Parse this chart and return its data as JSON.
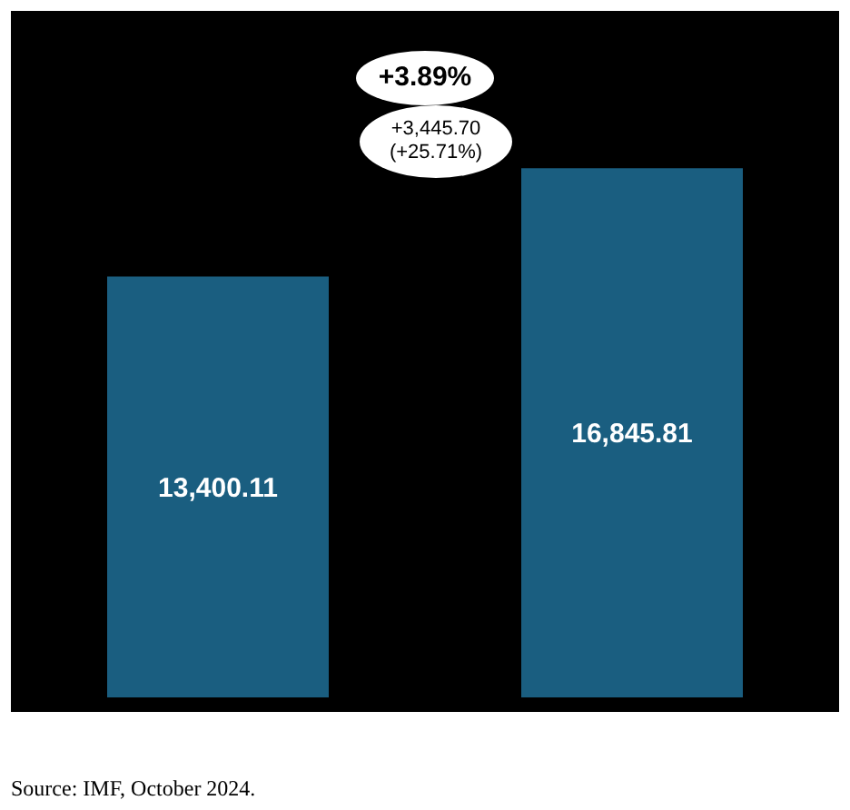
{
  "chart_data": {
    "type": "bar",
    "categories": [
      null,
      null
    ],
    "values": [
      13400.11,
      16845.81
    ],
    "color": "#1a5e80",
    "value_labels": [
      "13,400.11",
      "16,845.81"
    ],
    "grid": false,
    "legend": false,
    "annotations": [
      "+3.89%",
      "+3,445.70 (+25.71%)",
      "Source: IMF, October 2024."
    ]
  }
}
